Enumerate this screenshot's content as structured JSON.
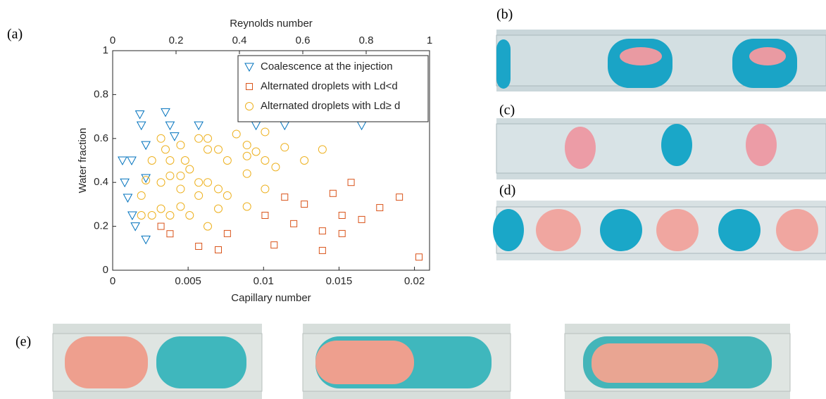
{
  "chart_data": {
    "type": "scatter",
    "xlabel": "Capillary number",
    "ylabel": "Water fraction",
    "x2label": "Reynolds number",
    "xlim": [
      0,
      0.021
    ],
    "xticks": [
      0,
      0.005,
      0.01,
      0.015,
      0.02
    ],
    "x2lim": [
      0,
      1
    ],
    "x2ticks": [
      0,
      0.2,
      0.4,
      0.6,
      0.8,
      1
    ],
    "ylim": [
      0,
      1
    ],
    "yticks": [
      0,
      0.2,
      0.4,
      0.6,
      0.8,
      1
    ],
    "grid": false,
    "legend": "upper right",
    "series": [
      {
        "name": "Coalescence at the injection",
        "color": "#0072BD",
        "marker": "triangle-down",
        "x": [
          0.00065,
          0.00126,
          0.0008,
          0.001,
          0.0013,
          0.0015,
          0.0022,
          0.0018,
          0.0019,
          0.0022,
          0.0022,
          0.0035,
          0.0038,
          0.0041,
          0.0057,
          0.0095,
          0.0114,
          0.0165
        ],
        "values": [
          0.5,
          0.5,
          0.4,
          0.33,
          0.25,
          0.2,
          0.14,
          0.71,
          0.66,
          0.57,
          0.42,
          0.72,
          0.66,
          0.61,
          0.66,
          0.66,
          0.66,
          0.66
        ]
      },
      {
        "name": "Alternated droplets with Ld<d",
        "color": "#D95319",
        "marker": "square",
        "x": [
          0.0032,
          0.0038,
          0.0057,
          0.007,
          0.0076,
          0.0101,
          0.0107,
          0.0114,
          0.012,
          0.0127,
          0.0139,
          0.0139,
          0.0146,
          0.0152,
          0.0152,
          0.0158,
          0.0165,
          0.0177,
          0.019,
          0.0203
        ],
        "values": [
          0.2,
          0.166,
          0.109,
          0.093,
          0.167,
          0.25,
          0.115,
          0.333,
          0.212,
          0.301,
          0.179,
          0.09,
          0.35,
          0.25,
          0.167,
          0.4,
          0.231,
          0.285,
          0.333,
          0.06
        ]
      },
      {
        "name": "Alternated droplets with Ld≥ d",
        "color": "#EDB120",
        "marker": "circle",
        "x": [
          0.0032,
          0.0026,
          0.0035,
          0.0038,
          0.0045,
          0.0048,
          0.0057,
          0.0063,
          0.0063,
          0.007,
          0.0076,
          0.0082,
          0.0089,
          0.0089,
          0.0095,
          0.0101,
          0.0101,
          0.0108,
          0.0114,
          0.0127,
          0.0139,
          0.0019,
          0.0022,
          0.0032,
          0.0038,
          0.0045,
          0.0045,
          0.0051,
          0.0057,
          0.0063,
          0.007,
          0.0076,
          0.0089,
          0.0101,
          0.0019,
          0.0026,
          0.0032,
          0.0038,
          0.0045,
          0.0051,
          0.0057,
          0.0063,
          0.007,
          0.0089
        ],
        "values": [
          0.6,
          0.5,
          0.55,
          0.5,
          0.57,
          0.5,
          0.6,
          0.6,
          0.55,
          0.55,
          0.5,
          0.62,
          0.57,
          0.52,
          0.54,
          0.63,
          0.5,
          0.47,
          0.56,
          0.5,
          0.55,
          0.34,
          0.41,
          0.4,
          0.43,
          0.43,
          0.37,
          0.46,
          0.4,
          0.4,
          0.37,
          0.34,
          0.44,
          0.37,
          0.25,
          0.25,
          0.28,
          0.25,
          0.29,
          0.25,
          0.34,
          0.2,
          0.28,
          0.29
        ]
      }
    ]
  },
  "figure": {
    "panel_labels": [
      "(a)",
      "(b)",
      "(c)",
      "(d)",
      "(e)"
    ]
  }
}
